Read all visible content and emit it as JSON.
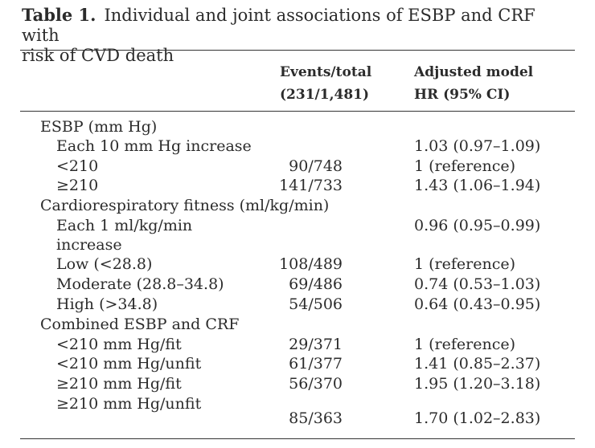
{
  "table": {
    "label": "Table 1.",
    "caption_line1": "Individual and joint associations of ESBP and CRF with",
    "caption_line2": "risk of CVD death",
    "headers": {
      "events_line1": "Events/total",
      "events_line2": "(231/1,481)",
      "hr_line1": "Adjusted model",
      "hr_line2": "HR (95% CI)"
    },
    "sections": [
      {
        "title": "ESBP (mm Hg)",
        "rows": [
          {
            "label": "Each 10 mm Hg increase",
            "events": "",
            "hr": "1.03 (0.97–1.09)"
          },
          {
            "label": "<210",
            "events": "90/748",
            "hr": "1 (reference)"
          },
          {
            "label": "≥210",
            "events": "141/733",
            "hr": "1.43 (1.06–1.94)"
          }
        ]
      },
      {
        "title": "Cardiorespiratory fitness (ml/kg/min)",
        "rows": [
          {
            "label": "Each 1 ml/kg/min",
            "label_cont": "increase",
            "events": "",
            "hr": "0.96 (0.95–0.99)"
          },
          {
            "label": "Low (<28.8)",
            "events": "108/489",
            "hr": "1 (reference)"
          },
          {
            "label": "Moderate (28.8–34.8)",
            "events": "69/486",
            "hr": "0.74 (0.53–1.03)"
          },
          {
            "label": "High (>34.8)",
            "events": "54/506",
            "hr": "0.64 (0.43–0.95)"
          }
        ]
      },
      {
        "title": "Combined ESBP and CRF",
        "rows": [
          {
            "label": "<210 mm Hg/fit",
            "events": "29/371",
            "hr": "1 (reference)"
          },
          {
            "label": "<210 mm Hg/unfit",
            "events": "61/377",
            "hr": "1.41 (0.85–2.37)"
          },
          {
            "label": "≥210 mm Hg/fit",
            "events": "56/370",
            "hr": "1.95 (1.20–3.18)"
          },
          {
            "label": "≥210 mm Hg/unfit",
            "events": "85/363",
            "hr": "1.70 (1.02–2.83)"
          }
        ]
      }
    ]
  }
}
